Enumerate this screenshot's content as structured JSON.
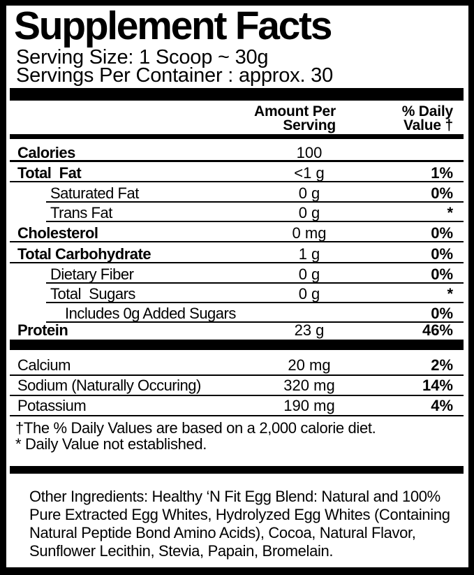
{
  "label": {
    "title": "Supplement Facts",
    "serving_size": "Serving Size: 1 Scoop ~ 30g",
    "servings_per_container": "Servings Per Container : approx. 30",
    "header": {
      "amount_per_serving": "Amount Per\nServing",
      "percent_daily_value": "% Daily\nValue †"
    },
    "nutrient_rows": [
      {
        "name": "Calories",
        "amount": "100",
        "dv": "",
        "bold": true,
        "indent": 0,
        "sep": "thick"
      },
      {
        "name": "Total  Fat",
        "amount": "<1 g",
        "dv": "1%",
        "bold": true,
        "indent": 0,
        "sep": "main"
      },
      {
        "name": "Saturated Fat",
        "amount": "0 g",
        "dv": "0%",
        "bold": false,
        "indent": 1,
        "sep": "indent"
      },
      {
        "name": "Trans Fat",
        "amount": "0 g",
        "dv": "*",
        "bold": false,
        "indent": 1,
        "sep": "indent"
      },
      {
        "name": "Cholesterol",
        "amount": "0 mg",
        "dv": "0%",
        "bold": true,
        "indent": 0,
        "sep": "main"
      },
      {
        "name": "Total Carbohydrate",
        "amount": "1 g",
        "dv": "0%",
        "bold": true,
        "indent": 0,
        "sep": "main"
      },
      {
        "name": "Dietary Fiber",
        "amount": "0 g",
        "dv": "0%",
        "bold": false,
        "indent": 1,
        "sep": "indent"
      },
      {
        "name": "Total  Sugars",
        "amount": "0 g",
        "dv": "*",
        "bold": false,
        "indent": 1,
        "sep": "indent"
      },
      {
        "name": "Includes 0g Added Sugars",
        "amount": "",
        "dv": "0%",
        "bold": false,
        "indent": 2,
        "sep": "indent"
      },
      {
        "name": "Protein",
        "amount": "23 g",
        "dv": "46%",
        "bold": true,
        "indent": 0,
        "sep": "none"
      }
    ],
    "mineral_rows": [
      {
        "name": "Calcium",
        "amount": "20 mg",
        "dv": "2%",
        "bold": false,
        "indent": 0,
        "sep": "main"
      },
      {
        "name": "Sodium (Naturally Occuring)",
        "amount": "320 mg",
        "dv": "14%",
        "bold": false,
        "indent": 0,
        "sep": "main"
      },
      {
        "name": "Potassium",
        "amount": "190 mg",
        "dv": "4%",
        "bold": false,
        "indent": 0,
        "sep": "main"
      }
    ],
    "footnotes": [
      "†The % Daily Values are based on a 2,000 calorie diet.",
      "* Daily Value not established."
    ],
    "other_ingredients_lines": [
      "Other Ingredients: Healthy ‘N Fit Egg Blend: Natural and 100%",
      "Pure Extracted Egg Whites, Hydrolyzed Egg Whites (Containing",
      "Natural Peptide Bond Amino Acids), Cocoa, Natural Flavor,",
      "Sunflower Lecithin, Stevia, Papain, Bromelain."
    ],
    "colors": {
      "ink": "#000000",
      "paper": "#ffffff"
    }
  }
}
